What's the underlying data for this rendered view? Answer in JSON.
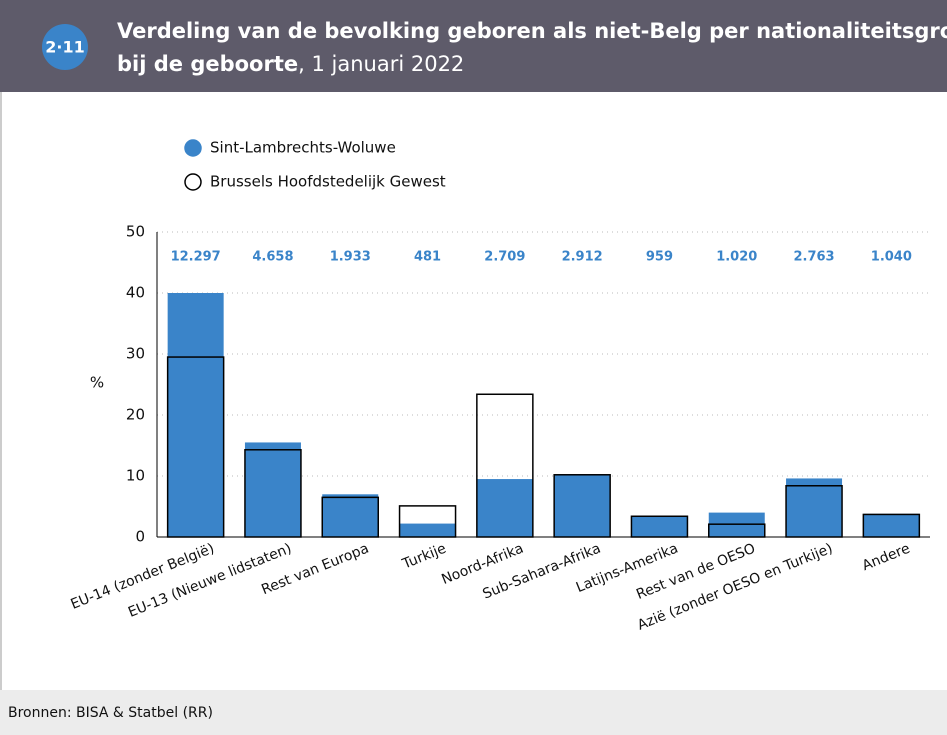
{
  "badge": "2·11",
  "header": {
    "title_line1": "Verdeling van de bevolking geboren als niet-Belg per nationaliteitsgroep",
    "title_line2_bold": "bij de geboorte",
    "title_line2_rest": ", 1 januari 2022"
  },
  "source": "Bronnen: BISA & Statbel (RR)",
  "chart_data": {
    "type": "bar",
    "categories": [
      "EU-14 (zonder België)",
      "EU-13 (Nieuwe lidstaten)",
      "Rest van Europa",
      "Turkije",
      "Noord-Afrika",
      "Sub-Sahara-Afrika",
      "Latijns-Amerika",
      "Rest van de OESO",
      "Azië (zonder OESO en Turkije)",
      "Andere"
    ],
    "series": [
      {
        "name": "Sint-Lambrechts-Woluwe",
        "color": "#3a84c9",
        "values": [
          40,
          15.5,
          7,
          2.2,
          9.5,
          10.3,
          3.5,
          4,
          9.6,
          3.8
        ]
      },
      {
        "name": "Brussels Hoofdstedelijk Gewest",
        "color": "#ffffff",
        "edgecolor": "#000000",
        "values": [
          29.5,
          14.3,
          6.5,
          5.1,
          23.4,
          10.2,
          3.4,
          2.1,
          8.4,
          3.7
        ]
      }
    ],
    "top_labels": [
      "12.297",
      "4.658",
      "1.933",
      "481",
      "2.709",
      "2.912",
      "959",
      "1.020",
      "2.763",
      "1.040"
    ],
    "top_label_color": "#3a84c9",
    "y_label": "%",
    "ylim": [
      0,
      50
    ],
    "yticks": [
      0,
      10,
      20,
      30,
      40,
      50
    ],
    "grid": true
  }
}
